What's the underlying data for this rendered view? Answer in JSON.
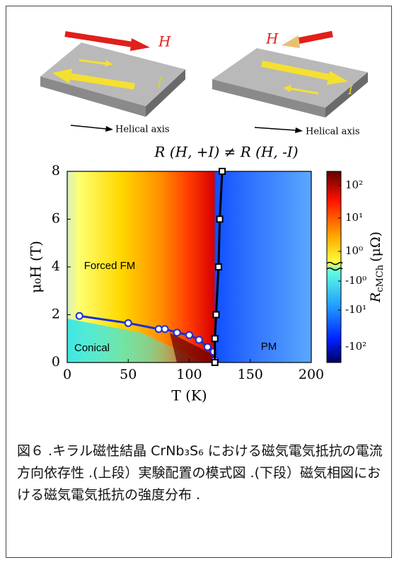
{
  "illustrations": {
    "left": {
      "field_label": "H",
      "current_label": "I",
      "axis_label": "Helical axis"
    },
    "right": {
      "field_label": "H",
      "current_label": "I",
      "axis_label": "Helical axis"
    },
    "equation": "R (H, +I) ≠ R (H, -I)"
  },
  "chart_data": {
    "type": "phase-diagram",
    "x_label": "T (K)",
    "y_label": "μ₀H (T)",
    "xlim": [
      0,
      200
    ],
    "xticks": [
      0,
      50,
      100,
      150,
      200
    ],
    "ylim": [
      0,
      8
    ],
    "yticks": [
      0,
      2,
      4,
      6,
      8
    ],
    "series": [
      {
        "color": "#1a2fd6",
        "marker": "circle",
        "x": [
          10,
          50,
          75,
          80,
          90,
          100,
          108,
          115,
          120,
          121
        ],
        "values": [
          1.95,
          1.65,
          1.4,
          1.4,
          1.25,
          1.15,
          0.95,
          0.65,
          0.45,
          0.1
        ]
      },
      {
        "color": "#000000",
        "marker": "square",
        "x": [
          121,
          121,
          122,
          124,
          125,
          127
        ],
        "values": [
          0,
          1,
          2,
          4,
          6,
          8
        ]
      }
    ],
    "annotations": [
      "Forced FM",
      "Conical",
      "PM"
    ],
    "colorbar": {
      "title": "R",
      "title_subscript": "cMCh",
      "unit": "(μΩ)",
      "labels": [
        "10²",
        "10¹",
        "10⁰",
        "-10⁰",
        "-10¹",
        "-10²"
      ]
    }
  },
  "caption": "図６ .キラル磁性結晶 CrNb₃S₆ における磁気電気抵抗の電流方向依存性 .(上段）実験配置の模式図 .(下段）磁気相図における磁気電気抵抗の強度分布 ."
}
